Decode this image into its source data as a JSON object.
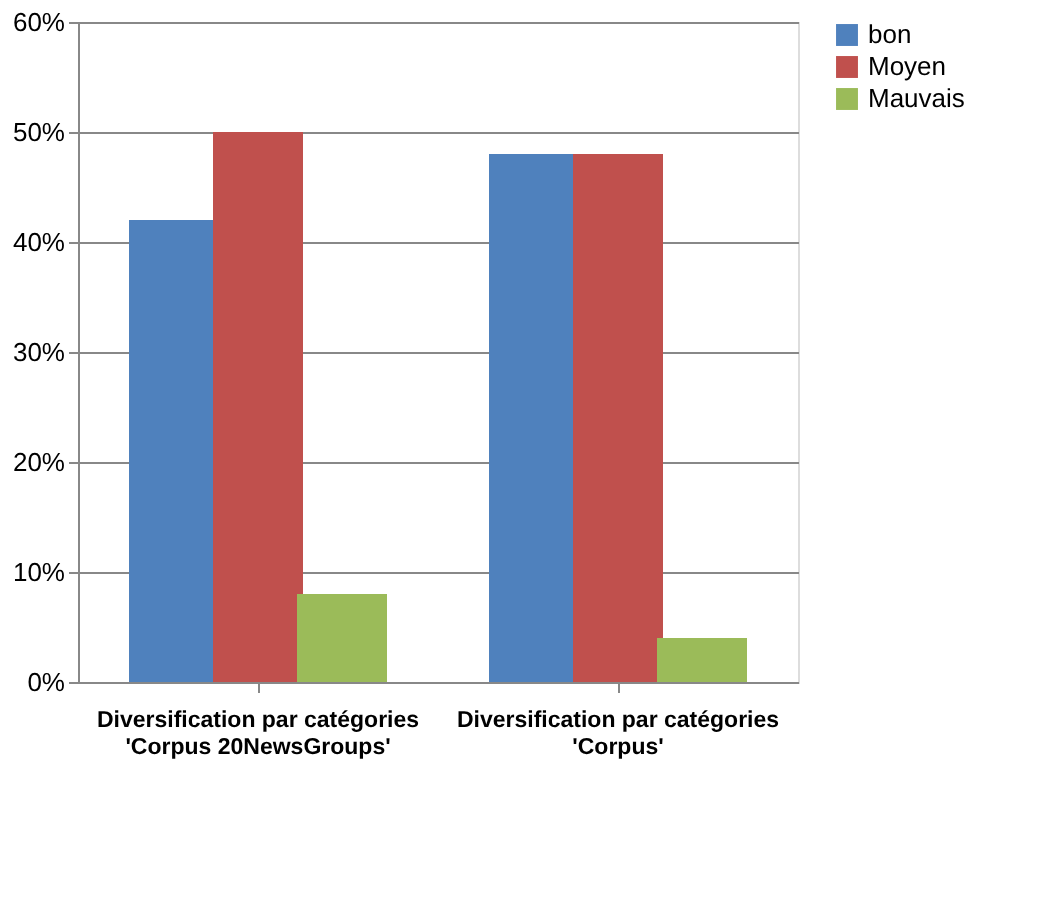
{
  "chart_data": {
    "type": "bar",
    "categories": [
      "Diversification par catégories\n'Corpus 20NewsGroups'",
      "Diversification par catégories\n'Corpus'"
    ],
    "series": [
      {
        "name": "bon",
        "color": "#4f81bd",
        "values": [
          42,
          48
        ]
      },
      {
        "name": "Moyen",
        "color": "#c0504d",
        "values": [
          50,
          48
        ]
      },
      {
        "name": "Mauvais",
        "color": "#9bbb59",
        "values": [
          8,
          4
        ]
      }
    ],
    "ylim": [
      0,
      60
    ],
    "yticks": [
      {
        "value": 0,
        "label": "0%"
      },
      {
        "value": 10,
        "label": "10%"
      },
      {
        "value": 20,
        "label": "20%"
      },
      {
        "value": 30,
        "label": "30%"
      },
      {
        "value": 40,
        "label": "40%"
      },
      {
        "value": 50,
        "label": "50%"
      },
      {
        "value": 60,
        "label": "60%"
      }
    ],
    "grid": "y",
    "legend": "right"
  }
}
